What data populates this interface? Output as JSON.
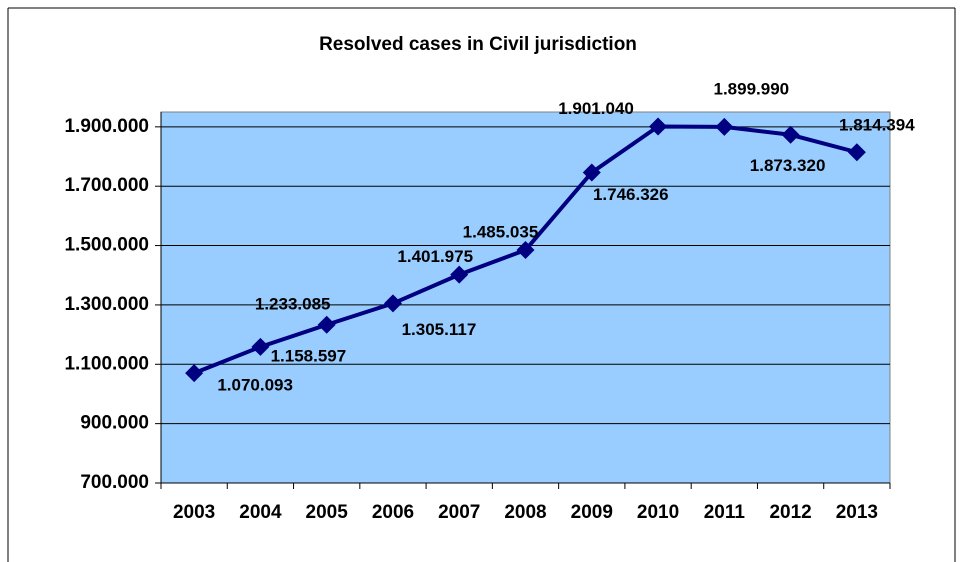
{
  "chart_data": {
    "type": "line",
    "title": "Resolved cases in Civil jurisdiction",
    "categories": [
      "2003",
      "2004",
      "2005",
      "2006",
      "2007",
      "2008",
      "2009",
      "2010",
      "2011",
      "2012",
      "2013"
    ],
    "series": [
      {
        "name": "Resolved cases",
        "color": "#000080",
        "values": [
          1070093,
          1158597,
          1233085,
          1305117,
          1401975,
          1485035,
          1746326,
          1901040,
          1899990,
          1873320,
          1814394
        ],
        "value_labels": [
          "1.070.093",
          "1.158.597",
          "1.233.085",
          "1.305.117",
          "1.401.975",
          "1.485.035",
          "1.746.326",
          "1.901.040",
          "1.899.990",
          "1.873.320",
          "1.814.394"
        ]
      }
    ],
    "ylim": [
      700000,
      1950000
    ],
    "yticks": [
      {
        "value": 700000,
        "label": "700.000"
      },
      {
        "value": 900000,
        "label": "900.000"
      },
      {
        "value": 1100000,
        "label": "1.100.000"
      },
      {
        "value": 1300000,
        "label": "1.300.000"
      },
      {
        "value": 1500000,
        "label": "1.500.000"
      },
      {
        "value": 1700000,
        "label": "1.700.000"
      },
      {
        "value": 1900000,
        "label": "1.900.000"
      }
    ],
    "grid": true,
    "plot_background": "#99ccff"
  }
}
